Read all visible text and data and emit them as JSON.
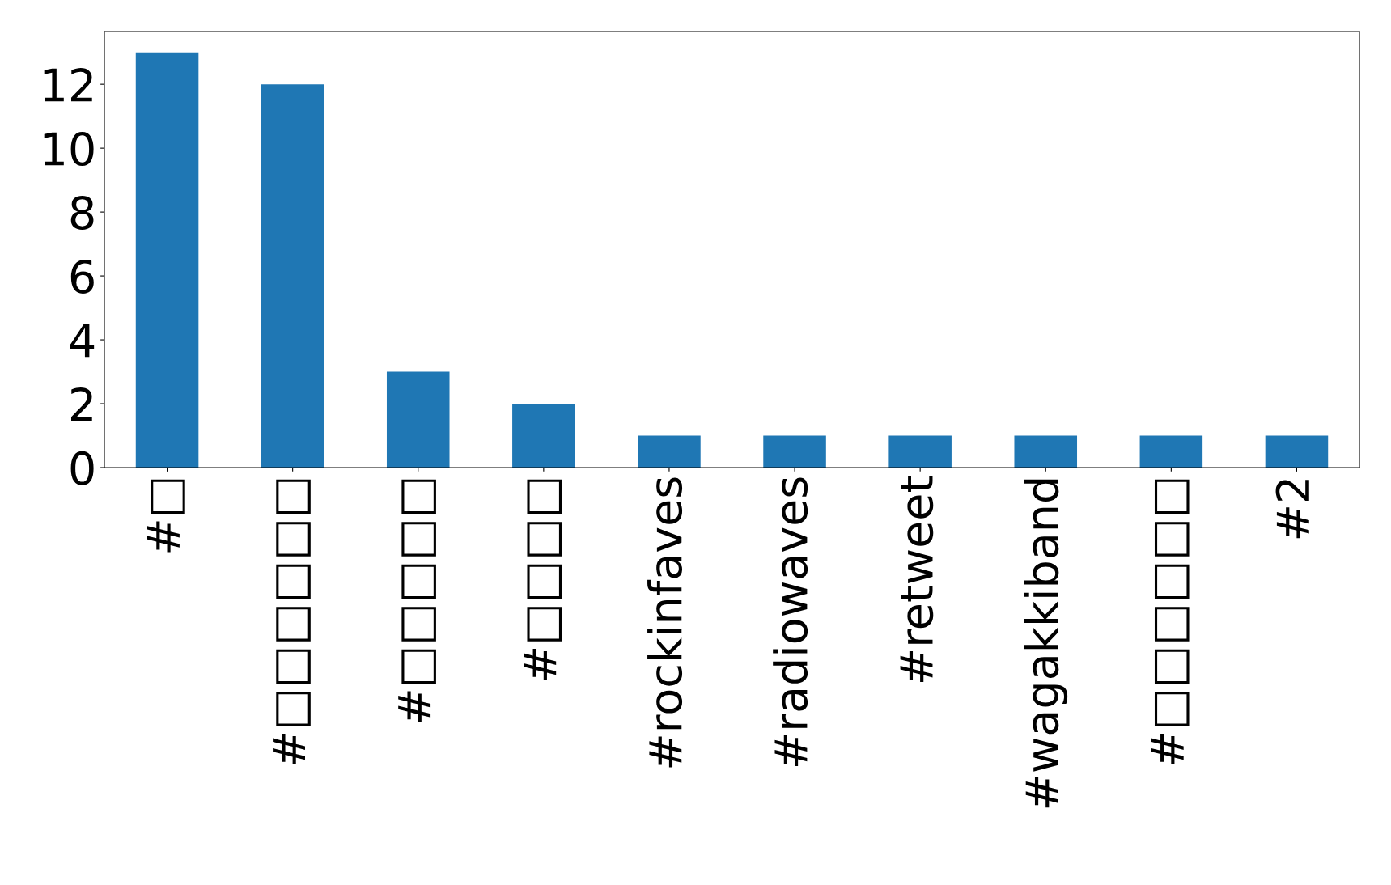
{
  "chart_data": {
    "type": "bar",
    "categories": [
      "#□",
      "#□□□□□□",
      "#□□□□□",
      "#□□□□",
      "#rockinfaves",
      "#radiowaves",
      "#retweet",
      "#wagakkiband",
      "#□□□□□□",
      "#2"
    ],
    "values": [
      13,
      12,
      3,
      2,
      1,
      1,
      1,
      1,
      1,
      1
    ],
    "color": "#1f77b4",
    "ylim": [
      0,
      13.65
    ],
    "yticks": [
      0,
      2,
      4,
      6,
      8,
      10,
      12
    ],
    "grid": false,
    "legend": false
  }
}
